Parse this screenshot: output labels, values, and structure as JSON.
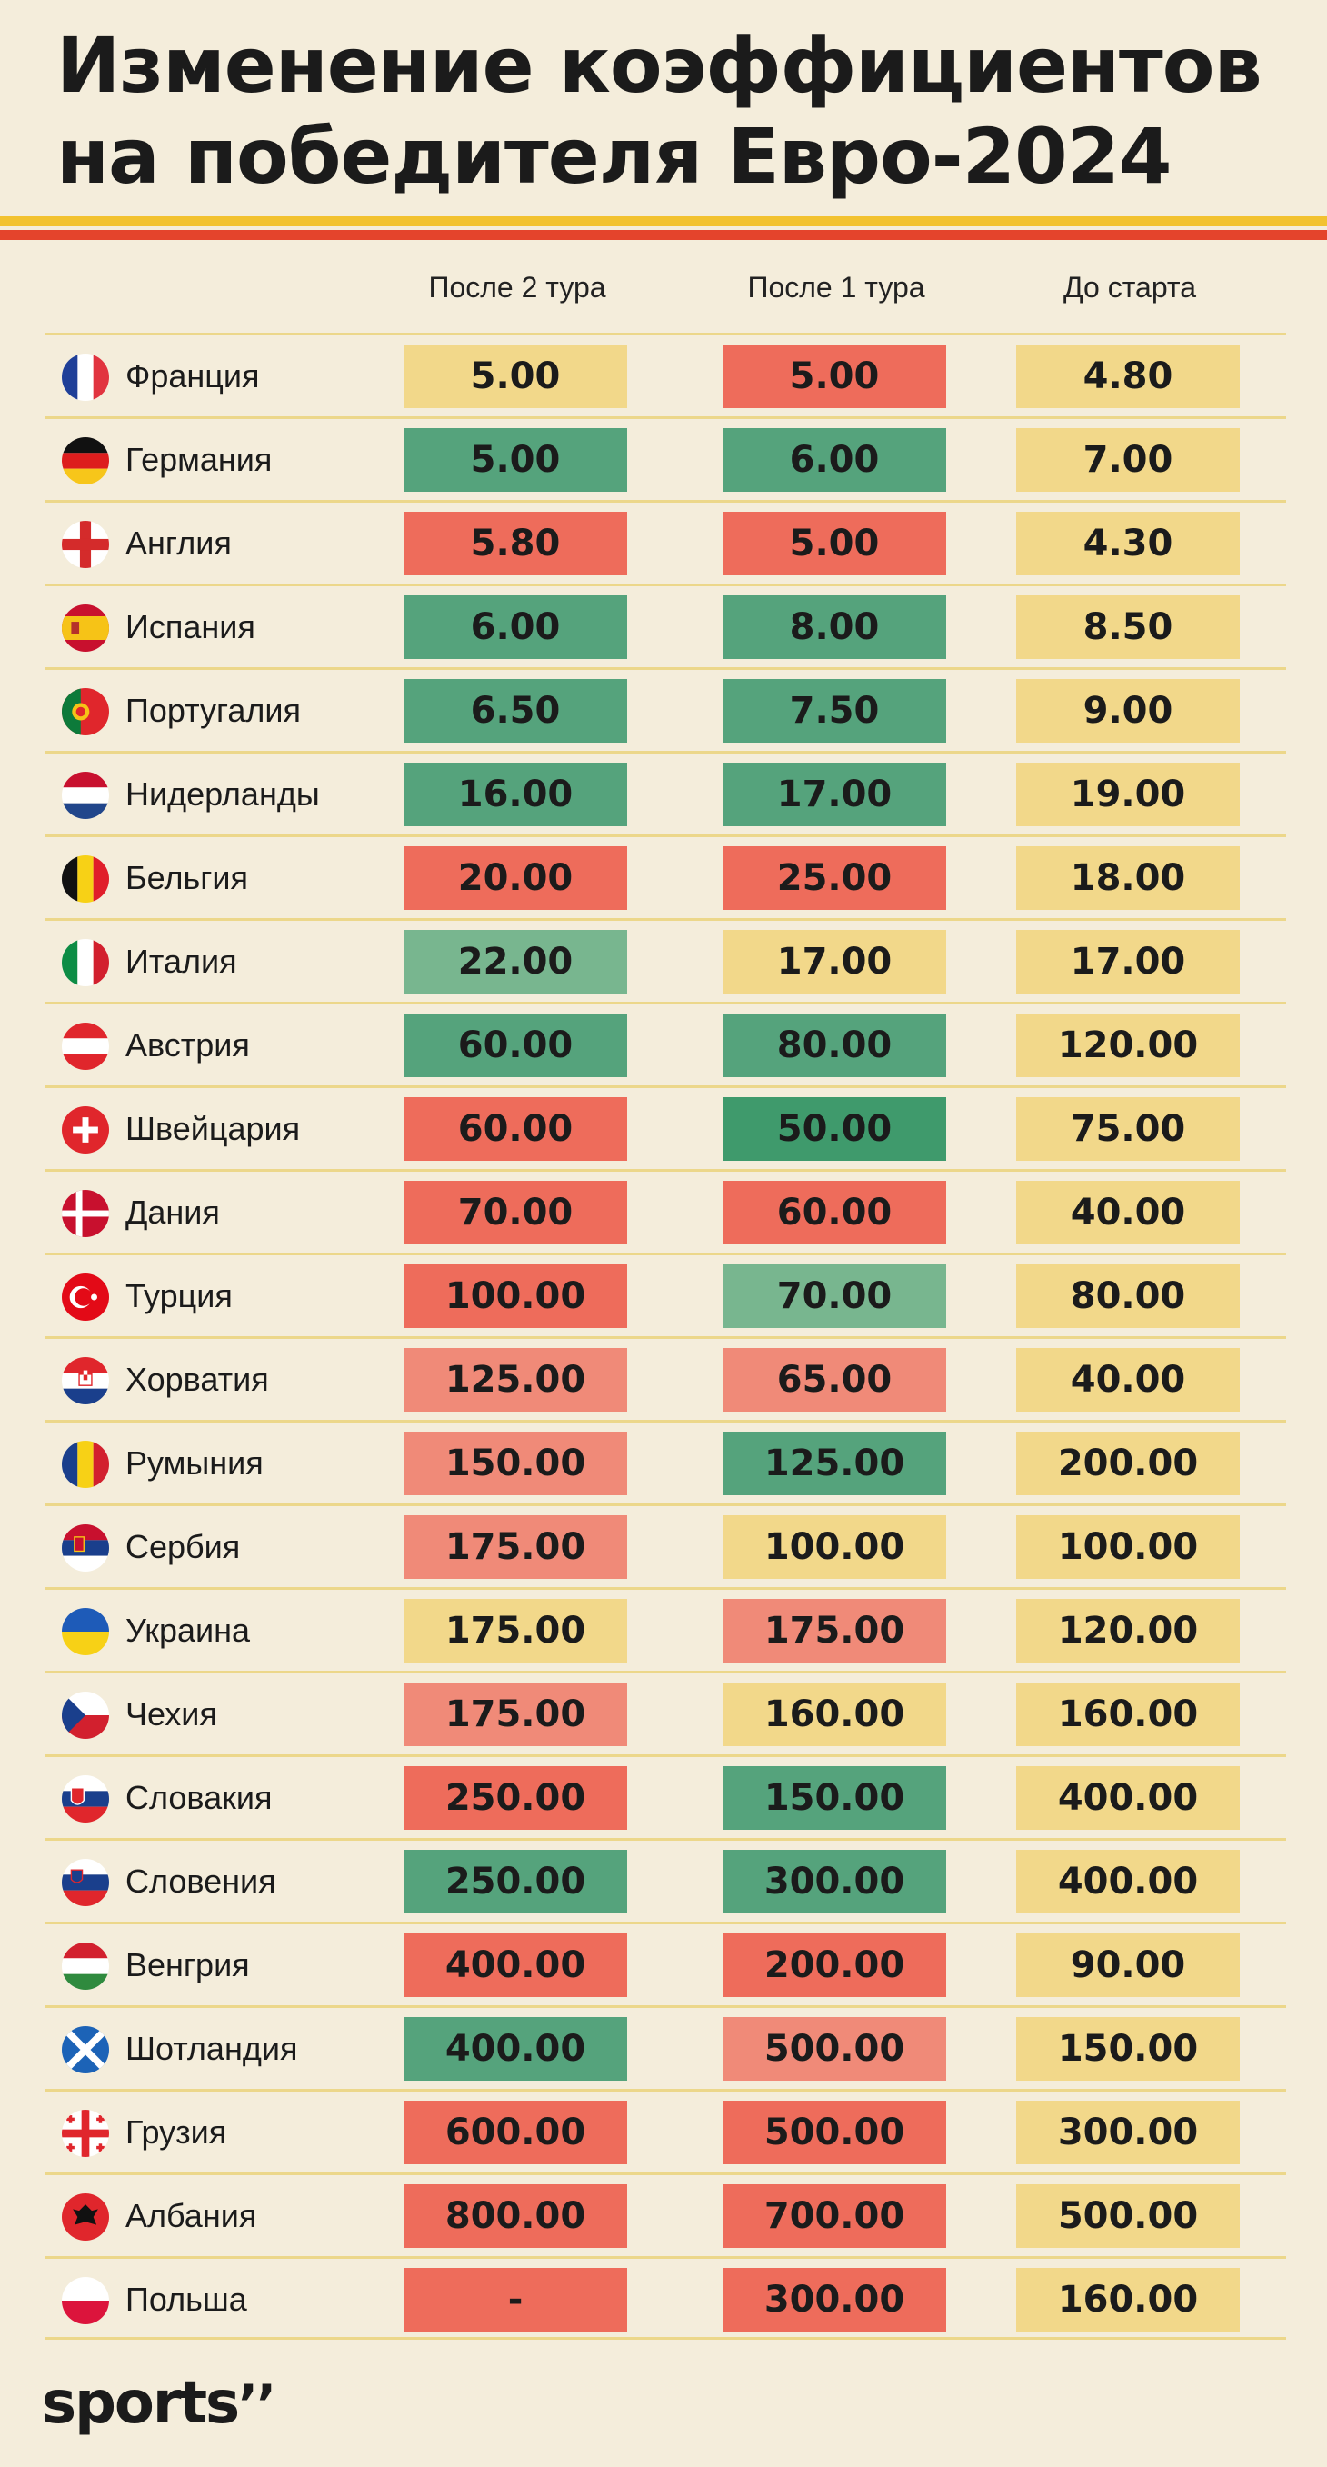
{
  "title_lines": [
    "Изменение коэффициентов",
    "на победителя Евро-2024"
  ],
  "stripes": [
    "#f2c230",
    "#e4442c"
  ],
  "columns": [
    "После 2 тура",
    "После 1 тура",
    "До старта"
  ],
  "colors": {
    "yellow": "#f2d88a",
    "green": "#55a37c",
    "green_dark": "#3f9a6c",
    "green_light": "#78b68f",
    "red": "#ee6c5b",
    "red_light": "#f08a78"
  },
  "rows": [
    {
      "name": "Франция",
      "flag": "france-flag",
      "values": [
        "5.00",
        "5.00",
        "4.80"
      ],
      "colors": [
        "yellow",
        "red",
        "yellow"
      ]
    },
    {
      "name": "Германия",
      "flag": "germany-flag",
      "values": [
        "5.00",
        "6.00",
        "7.00"
      ],
      "colors": [
        "green",
        "green",
        "yellow"
      ]
    },
    {
      "name": "Англия",
      "flag": "england-flag",
      "values": [
        "5.80",
        "5.00",
        "4.30"
      ],
      "colors": [
        "red",
        "red",
        "yellow"
      ]
    },
    {
      "name": "Испания",
      "flag": "spain-flag",
      "values": [
        "6.00",
        "8.00",
        "8.50"
      ],
      "colors": [
        "green",
        "green",
        "yellow"
      ]
    },
    {
      "name": "Португалия",
      "flag": "portugal-flag",
      "values": [
        "6.50",
        "7.50",
        "9.00"
      ],
      "colors": [
        "green",
        "green",
        "yellow"
      ]
    },
    {
      "name": "Нидерланды",
      "flag": "netherlands-flag",
      "values": [
        "16.00",
        "17.00",
        "19.00"
      ],
      "colors": [
        "green",
        "green",
        "yellow"
      ]
    },
    {
      "name": "Бельгия",
      "flag": "belgium-flag",
      "values": [
        "20.00",
        "25.00",
        "18.00"
      ],
      "colors": [
        "red",
        "red",
        "yellow"
      ]
    },
    {
      "name": "Италия",
      "flag": "italy-flag",
      "values": [
        "22.00",
        "17.00",
        "17.00"
      ],
      "colors": [
        "green_light",
        "yellow",
        "yellow"
      ]
    },
    {
      "name": "Австрия",
      "flag": "austria-flag",
      "values": [
        "60.00",
        "80.00",
        "120.00"
      ],
      "colors": [
        "green",
        "green",
        "yellow"
      ]
    },
    {
      "name": "Швейцария",
      "flag": "switzerland-flag",
      "values": [
        "60.00",
        "50.00",
        "75.00"
      ],
      "colors": [
        "red",
        "green_dark",
        "yellow"
      ]
    },
    {
      "name": "Дания",
      "flag": "denmark-flag",
      "values": [
        "70.00",
        "60.00",
        "40.00"
      ],
      "colors": [
        "red",
        "red",
        "yellow"
      ]
    },
    {
      "name": "Турция",
      "flag": "turkey-flag",
      "values": [
        "100.00",
        "70.00",
        "80.00"
      ],
      "colors": [
        "red",
        "green_light",
        "yellow"
      ]
    },
    {
      "name": "Хорватия",
      "flag": "croatia-flag",
      "values": [
        "125.00",
        "65.00",
        "40.00"
      ],
      "colors": [
        "red_light",
        "red_light",
        "yellow"
      ]
    },
    {
      "name": "Румыния",
      "flag": "romania-flag",
      "values": [
        "150.00",
        "125.00",
        "200.00"
      ],
      "colors": [
        "red_light",
        "green",
        "yellow"
      ]
    },
    {
      "name": "Сербия",
      "flag": "serbia-flag",
      "values": [
        "175.00",
        "100.00",
        "100.00"
      ],
      "colors": [
        "red_light",
        "yellow",
        "yellow"
      ]
    },
    {
      "name": "Украина",
      "flag": "ukraine-flag",
      "values": [
        "175.00",
        "175.00",
        "120.00"
      ],
      "colors": [
        "yellow",
        "red_light",
        "yellow"
      ]
    },
    {
      "name": "Чехия",
      "flag": "czechia-flag",
      "values": [
        "175.00",
        "160.00",
        "160.00"
      ],
      "colors": [
        "red_light",
        "yellow",
        "yellow"
      ]
    },
    {
      "name": "Словакия",
      "flag": "slovakia-flag",
      "values": [
        "250.00",
        "150.00",
        "400.00"
      ],
      "colors": [
        "red",
        "green",
        "yellow"
      ]
    },
    {
      "name": "Словения",
      "flag": "slovenia-flag",
      "values": [
        "250.00",
        "300.00",
        "400.00"
      ],
      "colors": [
        "green",
        "green",
        "yellow"
      ]
    },
    {
      "name": "Венгрия",
      "flag": "hungary-flag",
      "values": [
        "400.00",
        "200.00",
        "90.00"
      ],
      "colors": [
        "red",
        "red",
        "yellow"
      ]
    },
    {
      "name": "Шотландия",
      "flag": "scotland-flag",
      "values": [
        "400.00",
        "500.00",
        "150.00"
      ],
      "colors": [
        "green",
        "red_light",
        "yellow"
      ]
    },
    {
      "name": "Грузия",
      "flag": "georgia-flag",
      "values": [
        "600.00",
        "500.00",
        "300.00"
      ],
      "colors": [
        "red",
        "red",
        "yellow"
      ]
    },
    {
      "name": "Албания",
      "flag": "albania-flag",
      "values": [
        "800.00",
        "700.00",
        "500.00"
      ],
      "colors": [
        "red",
        "red",
        "yellow"
      ]
    },
    {
      "name": "Польша",
      "flag": "poland-flag",
      "values": [
        "-",
        "300.00",
        "160.00"
      ],
      "colors": [
        "red",
        "red",
        "yellow"
      ]
    }
  ],
  "logo": {
    "text": "sports",
    "mark": "’’"
  },
  "chart_data": {
    "type": "table",
    "title": "Изменение коэффициентов на победителя Евро-2024",
    "columns": [
      "После 2 тура",
      "После 1 тура",
      "До старта"
    ],
    "rows": [
      {
        "team": "Франция",
        "values": [
          "5.00",
          "5.00",
          "4.80"
        ]
      },
      {
        "team": "Германия",
        "values": [
          "5.00",
          "6.00",
          "7.00"
        ]
      },
      {
        "team": "Англия",
        "values": [
          "5.80",
          "5.00",
          "4.30"
        ]
      },
      {
        "team": "Испания",
        "values": [
          "6.00",
          "8.00",
          "8.50"
        ]
      },
      {
        "team": "Португалия",
        "values": [
          "6.50",
          "7.50",
          "9.00"
        ]
      },
      {
        "team": "Нидерланды",
        "values": [
          "16.00",
          "17.00",
          "19.00"
        ]
      },
      {
        "team": "Бельгия",
        "values": [
          "20.00",
          "25.00",
          "18.00"
        ]
      },
      {
        "team": "Италия",
        "values": [
          "22.00",
          "17.00",
          "17.00"
        ]
      },
      {
        "team": "Австрия",
        "values": [
          "60.00",
          "80.00",
          "120.00"
        ]
      },
      {
        "team": "Швейцария",
        "values": [
          "60.00",
          "50.00",
          "75.00"
        ]
      },
      {
        "team": "Дания",
        "values": [
          "70.00",
          "60.00",
          "40.00"
        ]
      },
      {
        "team": "Турция",
        "values": [
          "100.00",
          "70.00",
          "80.00"
        ]
      },
      {
        "team": "Хорватия",
        "values": [
          "125.00",
          "65.00",
          "40.00"
        ]
      },
      {
        "team": "Румыния",
        "values": [
          "150.00",
          "125.00",
          "200.00"
        ]
      },
      {
        "team": "Сербия",
        "values": [
          "175.00",
          "100.00",
          "100.00"
        ]
      },
      {
        "team": "Украина",
        "values": [
          "175.00",
          "175.00",
          "120.00"
        ]
      },
      {
        "team": "Чехия",
        "values": [
          "175.00",
          "160.00",
          "160.00"
        ]
      },
      {
        "team": "Словакия",
        "values": [
          "250.00",
          "150.00",
          "400.00"
        ]
      },
      {
        "team": "Словения",
        "values": [
          "250.00",
          "300.00",
          "400.00"
        ]
      },
      {
        "team": "Венгрия",
        "values": [
          "400.00",
          "200.00",
          "90.00"
        ]
      },
      {
        "team": "Шотландия",
        "values": [
          "400.00",
          "500.00",
          "150.00"
        ]
      },
      {
        "team": "Грузия",
        "values": [
          "600.00",
          "500.00",
          "300.00"
        ]
      },
      {
        "team": "Албания",
        "values": [
          "800.00",
          "700.00",
          "500.00"
        ]
      },
      {
        "team": "Польша",
        "values": [
          "-",
          "300.00",
          "160.00"
        ]
      }
    ]
  }
}
